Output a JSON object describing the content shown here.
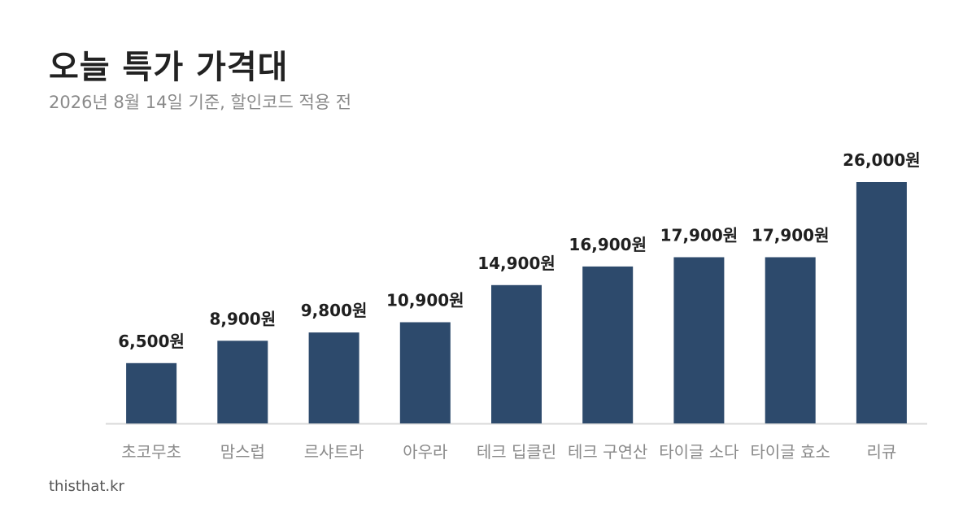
{
  "header": {
    "title": "오늘 특가 가격대",
    "subtitle": "2026년 8월 14일 기준, 할인코드 적용 전"
  },
  "footer": {
    "source": "thisthat.kr"
  },
  "colors": {
    "bar": "#2d4a6c",
    "baseline": "#d8d8d8"
  },
  "chart_data": {
    "type": "bar",
    "categories": [
      "초코무초",
      "맘스럽",
      "르샤트라",
      "아우라",
      "테크 딥클린",
      "테크 구연산",
      "타이글 소다",
      "타이글 효소",
      "리큐"
    ],
    "values": [
      6500,
      8900,
      9800,
      10900,
      14900,
      16900,
      17900,
      17900,
      26000
    ],
    "data_labels": [
      "6,500원",
      "8,900원",
      "9,800원",
      "10,900원",
      "14,900원",
      "16,900원",
      "17,900원",
      "17,900원",
      "26,000원"
    ],
    "ylim": [
      0,
      26000
    ],
    "grid": false,
    "legend": "none"
  }
}
